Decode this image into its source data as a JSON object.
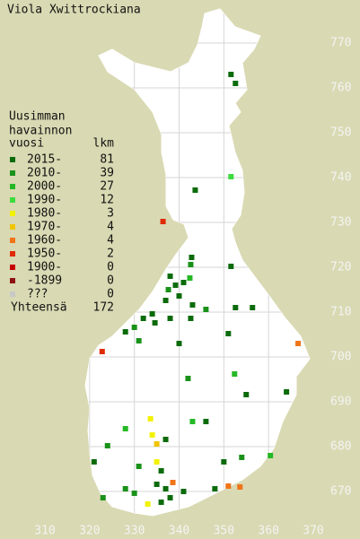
{
  "title": "Viola Xwittrockiana",
  "legend": {
    "title": [
      "Uusimman",
      "havainnon"
    ],
    "col_year": "vuosi",
    "col_count": "lkm",
    "entries": [
      {
        "label": "2015-",
        "count": 81,
        "color": "#0b6b0b"
      },
      {
        "label": "2010-",
        "count": 39,
        "color": "#1a921a"
      },
      {
        "label": "2000-",
        "count": 27,
        "color": "#25b825"
      },
      {
        "label": "1990-",
        "count": 12,
        "color": "#3ddc3d"
      },
      {
        "label": "1980-",
        "count": 3,
        "color": "#f2f200"
      },
      {
        "label": "1970-",
        "count": 4,
        "color": "#f0c400"
      },
      {
        "label": "1960-",
        "count": 4,
        "color": "#f07418"
      },
      {
        "label": "1950-",
        "count": 2,
        "color": "#e02a00"
      },
      {
        "label": "1900-",
        "count": 0,
        "color": "#c40000"
      },
      {
        "label": "-1899",
        "count": 0,
        "color": "#8e1010"
      },
      {
        "label": "???",
        "count": 0,
        "color": "#c8c8c8"
      }
    ],
    "total_label": "Yhteensä",
    "total": 172
  },
  "xticks": [
    310,
    320,
    330,
    340,
    350,
    360,
    370
  ],
  "yticks": [
    670,
    680,
    690,
    700,
    710,
    720,
    730,
    740,
    750,
    760,
    770
  ],
  "points": [
    [
      351.6,
      763,
      0
    ],
    [
      352.6,
      761,
      0
    ],
    [
      343.6,
      737.2,
      0
    ],
    [
      351.6,
      740.2,
      3
    ],
    [
      336.4,
      730.2,
      7
    ],
    [
      342.8,
      722.2,
      0
    ],
    [
      342.6,
      720.6,
      1
    ],
    [
      351.6,
      720.2,
      0
    ],
    [
      338,
      718,
      0
    ],
    [
      339.2,
      716,
      0
    ],
    [
      337.6,
      715,
      1
    ],
    [
      341,
      716.6,
      0
    ],
    [
      342.4,
      717.6,
      2
    ],
    [
      337,
      712.6,
      0
    ],
    [
      340,
      713.6,
      0
    ],
    [
      343,
      711.6,
      0
    ],
    [
      346,
      710.6,
      1
    ],
    [
      352.6,
      711,
      0
    ],
    [
      356.4,
      711,
      0
    ],
    [
      332,
      708.6,
      0
    ],
    [
      334,
      709.6,
      0
    ],
    [
      330,
      706.6,
      1
    ],
    [
      334.6,
      707.6,
      0
    ],
    [
      338,
      708.6,
      0
    ],
    [
      342.6,
      708.6,
      0
    ],
    [
      328,
      705.6,
      0
    ],
    [
      331,
      703.6,
      1
    ],
    [
      340,
      703,
      0
    ],
    [
      351,
      705.2,
      0
    ],
    [
      366.6,
      703,
      6
    ],
    [
      322.8,
      701.2,
      7
    ],
    [
      342,
      695.2,
      1
    ],
    [
      352.4,
      696.2,
      2
    ],
    [
      355,
      691.6,
      0
    ],
    [
      364,
      692.2,
      0
    ],
    [
      333.6,
      686.2,
      4
    ],
    [
      334,
      682.6,
      4
    ],
    [
      335,
      680.6,
      5
    ],
    [
      337,
      681.6,
      0
    ],
    [
      343,
      685.6,
      2
    ],
    [
      346,
      685.6,
      0
    ],
    [
      328,
      684,
      2
    ],
    [
      324,
      680.2,
      1
    ],
    [
      321,
      676.6,
      0
    ],
    [
      331,
      675.6,
      1
    ],
    [
      335,
      676.6,
      4
    ],
    [
      336,
      674.6,
      0
    ],
    [
      350,
      676.6,
      0
    ],
    [
      354,
      677.6,
      1
    ],
    [
      360.4,
      678,
      2
    ],
    [
      335,
      671.6,
      0
    ],
    [
      337,
      670.6,
      0
    ],
    [
      338,
      668.6,
      0
    ],
    [
      336,
      667.6,
      0
    ],
    [
      333,
      667.2,
      4
    ],
    [
      341,
      670,
      0
    ],
    [
      338.6,
      672,
      6
    ],
    [
      348,
      670.6,
      0
    ],
    [
      351,
      671.2,
      6
    ],
    [
      353.6,
      671,
      6
    ],
    [
      330,
      669.6,
      1
    ],
    [
      323,
      668.6,
      1
    ],
    [
      328,
      670.6,
      1
    ]
  ]
}
